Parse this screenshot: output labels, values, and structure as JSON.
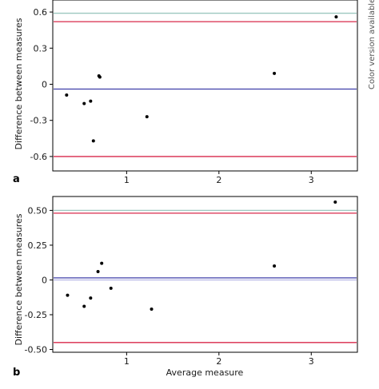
{
  "side_note": "Color version available online",
  "chart_data": [
    {
      "type": "scatter",
      "panel_label": "a",
      "xlabel": "",
      "ylabel": "Difference between measures",
      "xlim": [
        0.2,
        3.5
      ],
      "ylim": [
        -0.72,
        0.7
      ],
      "xticks": [
        1,
        2,
        3
      ],
      "yticks": [
        0.6,
        0.3,
        0,
        -0.3,
        -0.6
      ],
      "ytick_labels": [
        "0.6",
        "0.3",
        "0",
        "-0.3",
        "-0.6"
      ],
      "points": {
        "x": [
          0.35,
          0.54,
          0.61,
          0.64,
          0.7,
          0.71,
          1.22,
          2.6,
          3.27
        ],
        "y": [
          -0.09,
          -0.16,
          -0.14,
          -0.47,
          0.07,
          0.06,
          -0.27,
          0.09,
          0.56
        ]
      },
      "reference_lines": [
        {
          "y": 0.59,
          "color": "#9dc7bf"
        },
        {
          "y": 0.52,
          "color": "#d8284a"
        },
        {
          "y": -0.04,
          "color": "#3e3ea8"
        },
        {
          "y": -0.6,
          "color": "#d8284a"
        }
      ]
    },
    {
      "type": "scatter",
      "panel_label": "b",
      "xlabel": "Average measure",
      "ylabel": "Difference between measures",
      "xlim": [
        0.2,
        3.5
      ],
      "ylim": [
        -0.52,
        0.6
      ],
      "xticks": [
        1,
        2,
        3
      ],
      "yticks": [
        0.5,
        0.25,
        0,
        -0.25,
        -0.5
      ],
      "ytick_labels": [
        "0.50",
        "0.25",
        "0",
        "-0.25",
        "-0.50"
      ],
      "points": {
        "x": [
          0.36,
          0.54,
          0.61,
          0.69,
          0.73,
          0.83,
          1.27,
          2.6,
          3.26
        ],
        "y": [
          -0.11,
          -0.19,
          -0.13,
          0.06,
          0.12,
          -0.06,
          -0.21,
          0.1,
          0.56
        ]
      },
      "reference_lines": [
        {
          "y": 0.5,
          "color": "#9dc7bf"
        },
        {
          "y": 0.48,
          "color": "#d8284a"
        },
        {
          "y": 0.015,
          "color": "#3e3ea8"
        },
        {
          "y": 0.0,
          "color": "#b8b8e6"
        },
        {
          "y": -0.45,
          "color": "#d8284a"
        }
      ]
    }
  ]
}
